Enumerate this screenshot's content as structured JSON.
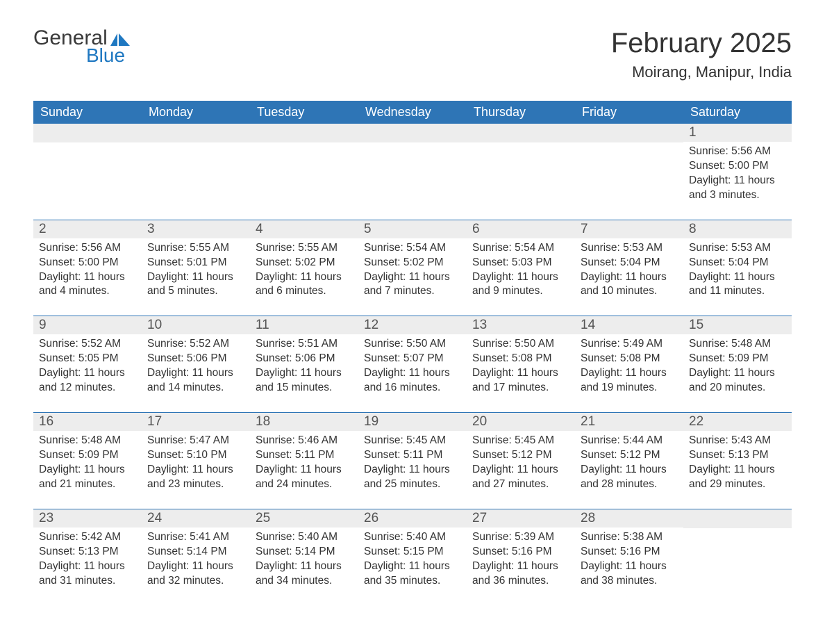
{
  "logo": {
    "general": "General",
    "blue": "Blue",
    "general_color": "#3a3a3a",
    "blue_color": "#1f78c1",
    "icon_color": "#1f78c1"
  },
  "title": "February 2025",
  "location": "Moirang, Manipur, India",
  "colors": {
    "header_bg": "#2e75b6",
    "header_text": "#ffffff",
    "daynum_bg": "#ededed",
    "daynum_text": "#555555",
    "body_text": "#333333",
    "divider": "#2e75b6",
    "page_bg": "#ffffff"
  },
  "fonts": {
    "title_size_pt": 30,
    "location_size_pt": 17,
    "dow_size_pt": 14,
    "daynum_size_pt": 14,
    "body_size_pt": 12
  },
  "days_of_week": [
    "Sunday",
    "Monday",
    "Tuesday",
    "Wednesday",
    "Thursday",
    "Friday",
    "Saturday"
  ],
  "weeks": [
    [
      null,
      null,
      null,
      null,
      null,
      null,
      {
        "n": "1",
        "sunrise": "Sunrise: 5:56 AM",
        "sunset": "Sunset: 5:00 PM",
        "daylight": "Daylight: 11 hours and 3 minutes."
      }
    ],
    [
      {
        "n": "2",
        "sunrise": "Sunrise: 5:56 AM",
        "sunset": "Sunset: 5:00 PM",
        "daylight": "Daylight: 11 hours and 4 minutes."
      },
      {
        "n": "3",
        "sunrise": "Sunrise: 5:55 AM",
        "sunset": "Sunset: 5:01 PM",
        "daylight": "Daylight: 11 hours and 5 minutes."
      },
      {
        "n": "4",
        "sunrise": "Sunrise: 5:55 AM",
        "sunset": "Sunset: 5:02 PM",
        "daylight": "Daylight: 11 hours and 6 minutes."
      },
      {
        "n": "5",
        "sunrise": "Sunrise: 5:54 AM",
        "sunset": "Sunset: 5:02 PM",
        "daylight": "Daylight: 11 hours and 7 minutes."
      },
      {
        "n": "6",
        "sunrise": "Sunrise: 5:54 AM",
        "sunset": "Sunset: 5:03 PM",
        "daylight": "Daylight: 11 hours and 9 minutes."
      },
      {
        "n": "7",
        "sunrise": "Sunrise: 5:53 AM",
        "sunset": "Sunset: 5:04 PM",
        "daylight": "Daylight: 11 hours and 10 minutes."
      },
      {
        "n": "8",
        "sunrise": "Sunrise: 5:53 AM",
        "sunset": "Sunset: 5:04 PM",
        "daylight": "Daylight: 11 hours and 11 minutes."
      }
    ],
    [
      {
        "n": "9",
        "sunrise": "Sunrise: 5:52 AM",
        "sunset": "Sunset: 5:05 PM",
        "daylight": "Daylight: 11 hours and 12 minutes."
      },
      {
        "n": "10",
        "sunrise": "Sunrise: 5:52 AM",
        "sunset": "Sunset: 5:06 PM",
        "daylight": "Daylight: 11 hours and 14 minutes."
      },
      {
        "n": "11",
        "sunrise": "Sunrise: 5:51 AM",
        "sunset": "Sunset: 5:06 PM",
        "daylight": "Daylight: 11 hours and 15 minutes."
      },
      {
        "n": "12",
        "sunrise": "Sunrise: 5:50 AM",
        "sunset": "Sunset: 5:07 PM",
        "daylight": "Daylight: 11 hours and 16 minutes."
      },
      {
        "n": "13",
        "sunrise": "Sunrise: 5:50 AM",
        "sunset": "Sunset: 5:08 PM",
        "daylight": "Daylight: 11 hours and 17 minutes."
      },
      {
        "n": "14",
        "sunrise": "Sunrise: 5:49 AM",
        "sunset": "Sunset: 5:08 PM",
        "daylight": "Daylight: 11 hours and 19 minutes."
      },
      {
        "n": "15",
        "sunrise": "Sunrise: 5:48 AM",
        "sunset": "Sunset: 5:09 PM",
        "daylight": "Daylight: 11 hours and 20 minutes."
      }
    ],
    [
      {
        "n": "16",
        "sunrise": "Sunrise: 5:48 AM",
        "sunset": "Sunset: 5:09 PM",
        "daylight": "Daylight: 11 hours and 21 minutes."
      },
      {
        "n": "17",
        "sunrise": "Sunrise: 5:47 AM",
        "sunset": "Sunset: 5:10 PM",
        "daylight": "Daylight: 11 hours and 23 minutes."
      },
      {
        "n": "18",
        "sunrise": "Sunrise: 5:46 AM",
        "sunset": "Sunset: 5:11 PM",
        "daylight": "Daylight: 11 hours and 24 minutes."
      },
      {
        "n": "19",
        "sunrise": "Sunrise: 5:45 AM",
        "sunset": "Sunset: 5:11 PM",
        "daylight": "Daylight: 11 hours and 25 minutes."
      },
      {
        "n": "20",
        "sunrise": "Sunrise: 5:45 AM",
        "sunset": "Sunset: 5:12 PM",
        "daylight": "Daylight: 11 hours and 27 minutes."
      },
      {
        "n": "21",
        "sunrise": "Sunrise: 5:44 AM",
        "sunset": "Sunset: 5:12 PM",
        "daylight": "Daylight: 11 hours and 28 minutes."
      },
      {
        "n": "22",
        "sunrise": "Sunrise: 5:43 AM",
        "sunset": "Sunset: 5:13 PM",
        "daylight": "Daylight: 11 hours and 29 minutes."
      }
    ],
    [
      {
        "n": "23",
        "sunrise": "Sunrise: 5:42 AM",
        "sunset": "Sunset: 5:13 PM",
        "daylight": "Daylight: 11 hours and 31 minutes."
      },
      {
        "n": "24",
        "sunrise": "Sunrise: 5:41 AM",
        "sunset": "Sunset: 5:14 PM",
        "daylight": "Daylight: 11 hours and 32 minutes."
      },
      {
        "n": "25",
        "sunrise": "Sunrise: 5:40 AM",
        "sunset": "Sunset: 5:14 PM",
        "daylight": "Daylight: 11 hours and 34 minutes."
      },
      {
        "n": "26",
        "sunrise": "Sunrise: 5:40 AM",
        "sunset": "Sunset: 5:15 PM",
        "daylight": "Daylight: 11 hours and 35 minutes."
      },
      {
        "n": "27",
        "sunrise": "Sunrise: 5:39 AM",
        "sunset": "Sunset: 5:16 PM",
        "daylight": "Daylight: 11 hours and 36 minutes."
      },
      {
        "n": "28",
        "sunrise": "Sunrise: 5:38 AM",
        "sunset": "Sunset: 5:16 PM",
        "daylight": "Daylight: 11 hours and 38 minutes."
      },
      null
    ]
  ]
}
